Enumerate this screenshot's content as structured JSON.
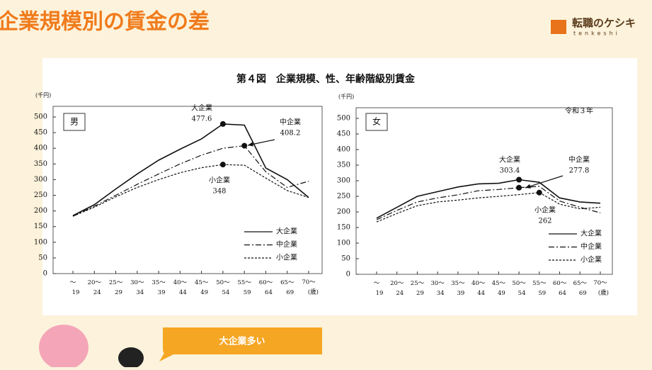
{
  "header": {
    "title": "企業規模別の賃金の差",
    "logo": "転職のケシキ",
    "logo_sub": "tenkeshi"
  },
  "figure_title": "第４図　企業規模、性、年齢階級別賃金",
  "bubble": "大企業多い",
  "chart_data": [
    {
      "type": "line",
      "label": "男",
      "y_unit": "(千円)",
      "x_unit": "(歳)",
      "categories": [
        "〜19",
        "20〜24",
        "25〜29",
        "30〜34",
        "35〜39",
        "40〜44",
        "45〜49",
        "50〜54",
        "55〜59",
        "60〜64",
        "65〜69",
        "70〜"
      ],
      "ylim": [
        0,
        500
      ],
      "yticks": [
        0,
        50,
        100,
        150,
        200,
        250,
        300,
        350,
        400,
        450,
        500
      ],
      "legend": "lower right",
      "series": [
        {
          "name": "大企業",
          "color": "#111111",
          "style": "solid",
          "marker_index": 7,
          "values": [
            185,
            220,
            270,
            318,
            362,
            397,
            430,
            477.6,
            474,
            337,
            300,
            243
          ]
        },
        {
          "name": "中企業",
          "color": "#111111",
          "style": "dashdot",
          "marker_index": 8,
          "values": [
            183,
            215,
            250,
            285,
            318,
            350,
            378,
            400,
            408.2,
            325,
            275,
            295
          ]
        },
        {
          "name": "小企業",
          "color": "#111111",
          "style": "dashed",
          "marker_index": 7,
          "values": [
            183,
            212,
            245,
            275,
            300,
            322,
            338,
            348.0,
            346,
            305,
            265,
            243
          ]
        }
      ]
    },
    {
      "type": "line",
      "label": "女",
      "y_unit": "(千円)",
      "x_unit": "(歳)",
      "note": "令和３年",
      "categories": [
        "〜19",
        "20〜24",
        "25〜29",
        "30〜34",
        "35〜39",
        "40〜44",
        "45〜49",
        "50〜54",
        "55〜59",
        "60〜64",
        "65〜69",
        "70〜"
      ],
      "ylim": [
        0,
        500
      ],
      "yticks": [
        0,
        50,
        100,
        150,
        200,
        250,
        300,
        350,
        400,
        450,
        500
      ],
      "legend": "lower right",
      "series": [
        {
          "name": "大企業",
          "color": "#111111",
          "style": "solid",
          "marker_index": 7,
          "values": [
            180,
            215,
            250,
            265,
            280,
            290,
            292,
            303.4,
            295,
            245,
            232,
            228
          ]
        },
        {
          "name": "中企業",
          "color": "#111111",
          "style": "dashdot",
          "marker_index": 7,
          "values": [
            175,
            205,
            232,
            245,
            255,
            268,
            272,
            277.8,
            282,
            235,
            215,
            197
          ]
        },
        {
          "name": "小企業",
          "color": "#111111",
          "style": "dashed",
          "marker_index": 8,
          "values": [
            168,
            195,
            220,
            232,
            238,
            245,
            250,
            255.5,
            262,
            225,
            210,
            215
          ]
        }
      ]
    }
  ]
}
